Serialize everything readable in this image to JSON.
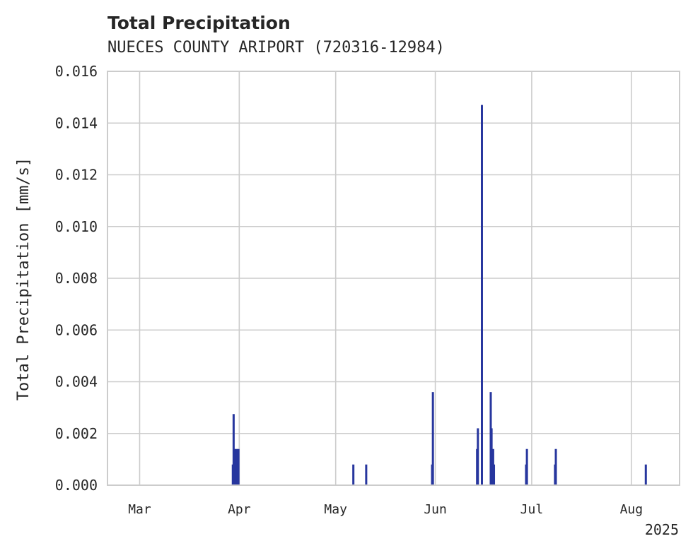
{
  "chart_data": {
    "type": "bar",
    "title": "Total Precipitation",
    "subtitle": "NUECES COUNTY ARIPORT (720316-12984)",
    "ylabel": "Total Precipitation [mm/s]",
    "xlabel": "",
    "ylim": [
      0,
      0.016
    ],
    "y_ticks": [
      "0.000",
      "0.002",
      "0.004",
      "0.006",
      "0.008",
      "0.010",
      "0.012",
      "0.014",
      "0.016"
    ],
    "x_range": [
      "2025-02-19",
      "2025-08-16"
    ],
    "x_ticks": [
      {
        "date": "2025-03-01",
        "label": "Mar"
      },
      {
        "date": "2025-04-01",
        "label": "Apr"
      },
      {
        "date": "2025-05-01",
        "label": "May"
      },
      {
        "date": "2025-06-01",
        "label": "Jun"
      },
      {
        "date": "2025-07-01",
        "label": "Jul"
      },
      {
        "date": "2025-08-01",
        "label": "Aug"
      }
    ],
    "x_offset_label": "2025",
    "grid": true,
    "series": [
      {
        "name": "Total Precipitation",
        "color": "#27369e",
        "points": [
          {
            "t": "2025-03-30T00:00",
            "v": 0.0008
          },
          {
            "t": "2025-03-30T06:00",
            "v": 0.00275
          },
          {
            "t": "2025-03-30T18:00",
            "v": 0.0014
          },
          {
            "t": "2025-03-31T06:00",
            "v": 0.0014
          },
          {
            "t": "2025-03-31T12:00",
            "v": 0.0008
          },
          {
            "t": "2025-03-31T18:00",
            "v": 0.0014
          },
          {
            "t": "2025-05-06T12:00",
            "v": 0.0008
          },
          {
            "t": "2025-05-10T12:00",
            "v": 0.0008
          },
          {
            "t": "2025-05-31T00:00",
            "v": 0.0008
          },
          {
            "t": "2025-05-31T06:00",
            "v": 0.0036
          },
          {
            "t": "2025-06-14T00:00",
            "v": 0.0014
          },
          {
            "t": "2025-06-14T06:00",
            "v": 0.0022
          },
          {
            "t": "2025-06-15T12:00",
            "v": 0.0147
          },
          {
            "t": "2025-06-18T06:00",
            "v": 0.0036
          },
          {
            "t": "2025-06-18T12:00",
            "v": 0.0022
          },
          {
            "t": "2025-06-18T18:00",
            "v": 0.0008
          },
          {
            "t": "2025-06-19T00:00",
            "v": 0.0014
          },
          {
            "t": "2025-06-19T06:00",
            "v": 0.0008
          },
          {
            "t": "2025-06-29T06:00",
            "v": 0.0008
          },
          {
            "t": "2025-06-29T12:00",
            "v": 0.0014
          },
          {
            "t": "2025-07-08T06:00",
            "v": 0.0008
          },
          {
            "t": "2025-07-08T12:00",
            "v": 0.0014
          },
          {
            "t": "2025-08-05T12:00",
            "v": 0.0008
          }
        ]
      }
    ]
  }
}
